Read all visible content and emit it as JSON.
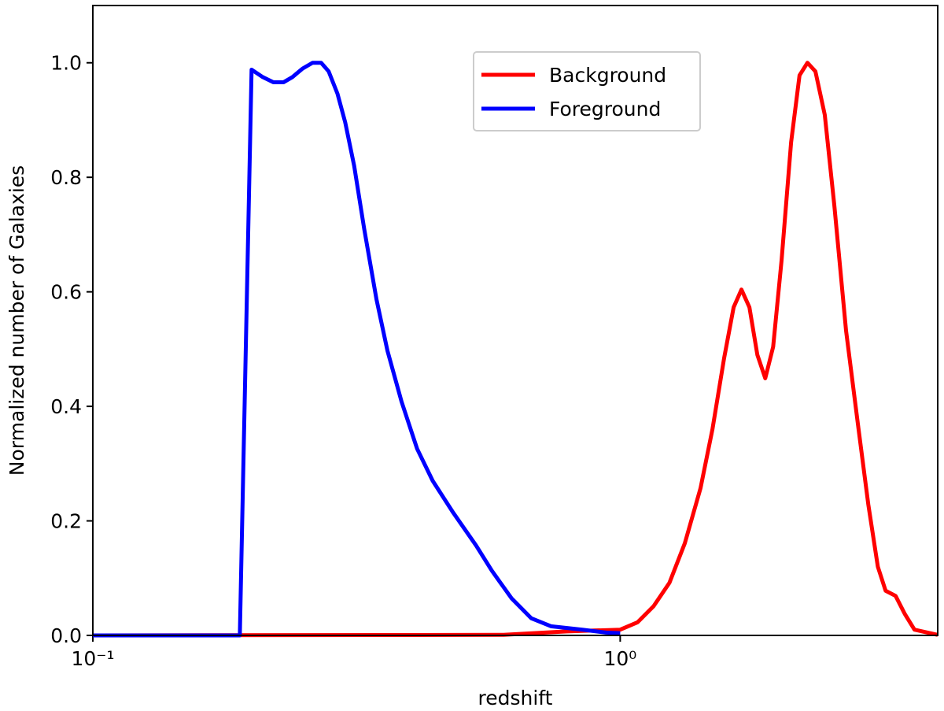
{
  "chart_data": {
    "type": "line",
    "xlabel": "redshift",
    "ylabel": "Normalized number of Galaxies",
    "xscale": "log",
    "xlim": [
      0.1,
      4.0
    ],
    "ylim": [
      0,
      1.1
    ],
    "xticks": [
      {
        "value": 0.1,
        "label": "10⁻¹"
      },
      {
        "value": 1,
        "label": "10⁰"
      }
    ],
    "yticks": [
      {
        "value": 0,
        "label": "0.0"
      },
      0.2,
      0.4,
      0.6,
      0.8,
      {
        "value": 1,
        "label": "1.0"
      }
    ],
    "legend_position": "upper center",
    "series": [
      {
        "name": "Background",
        "color": "#ff0000",
        "x": [
          0.1,
          0.601,
          0.792,
          1.0,
          1.079,
          1.157,
          1.24,
          1.326,
          1.42,
          1.496,
          1.574,
          1.641,
          1.698,
          1.758,
          1.82,
          1.884,
          1.95,
          2.023,
          2.109,
          2.188,
          2.265,
          2.345,
          2.443,
          2.547,
          2.681,
          2.825,
          2.954,
          3.08,
          3.186,
          3.328,
          3.467,
          3.614,
          4.0
        ],
        "values": [
          0,
          0.001,
          0.007,
          0.01,
          0.023,
          0.051,
          0.092,
          0.161,
          0.257,
          0.36,
          0.484,
          0.573,
          0.604,
          0.573,
          0.49,
          0.449,
          0.504,
          0.655,
          0.861,
          0.978,
          1.0,
          0.985,
          0.909,
          0.751,
          0.532,
          0.367,
          0.229,
          0.12,
          0.078,
          0.069,
          0.037,
          0.01,
          0.001
        ]
      },
      {
        "name": "Foreground",
        "color": "#0000ff",
        "x": [
          0.1,
          0.19,
          0.2,
          0.21,
          0.22,
          0.23,
          0.239,
          0.25,
          0.261,
          0.271,
          0.28,
          0.291,
          0.301,
          0.313,
          0.327,
          0.345,
          0.362,
          0.385,
          0.412,
          0.441,
          0.481,
          0.533,
          0.571,
          0.622,
          0.678,
          0.739,
          0.848,
          0.94,
          1.0
        ],
        "values": [
          0,
          0,
          0.988,
          0.975,
          0.966,
          0.966,
          0.975,
          0.99,
          1.0,
          1.0,
          0.985,
          0.946,
          0.896,
          0.82,
          0.71,
          0.587,
          0.497,
          0.408,
          0.326,
          0.27,
          0.216,
          0.157,
          0.113,
          0.065,
          0.03,
          0.016,
          0.01,
          0.005,
          0.004
        ]
      }
    ]
  }
}
